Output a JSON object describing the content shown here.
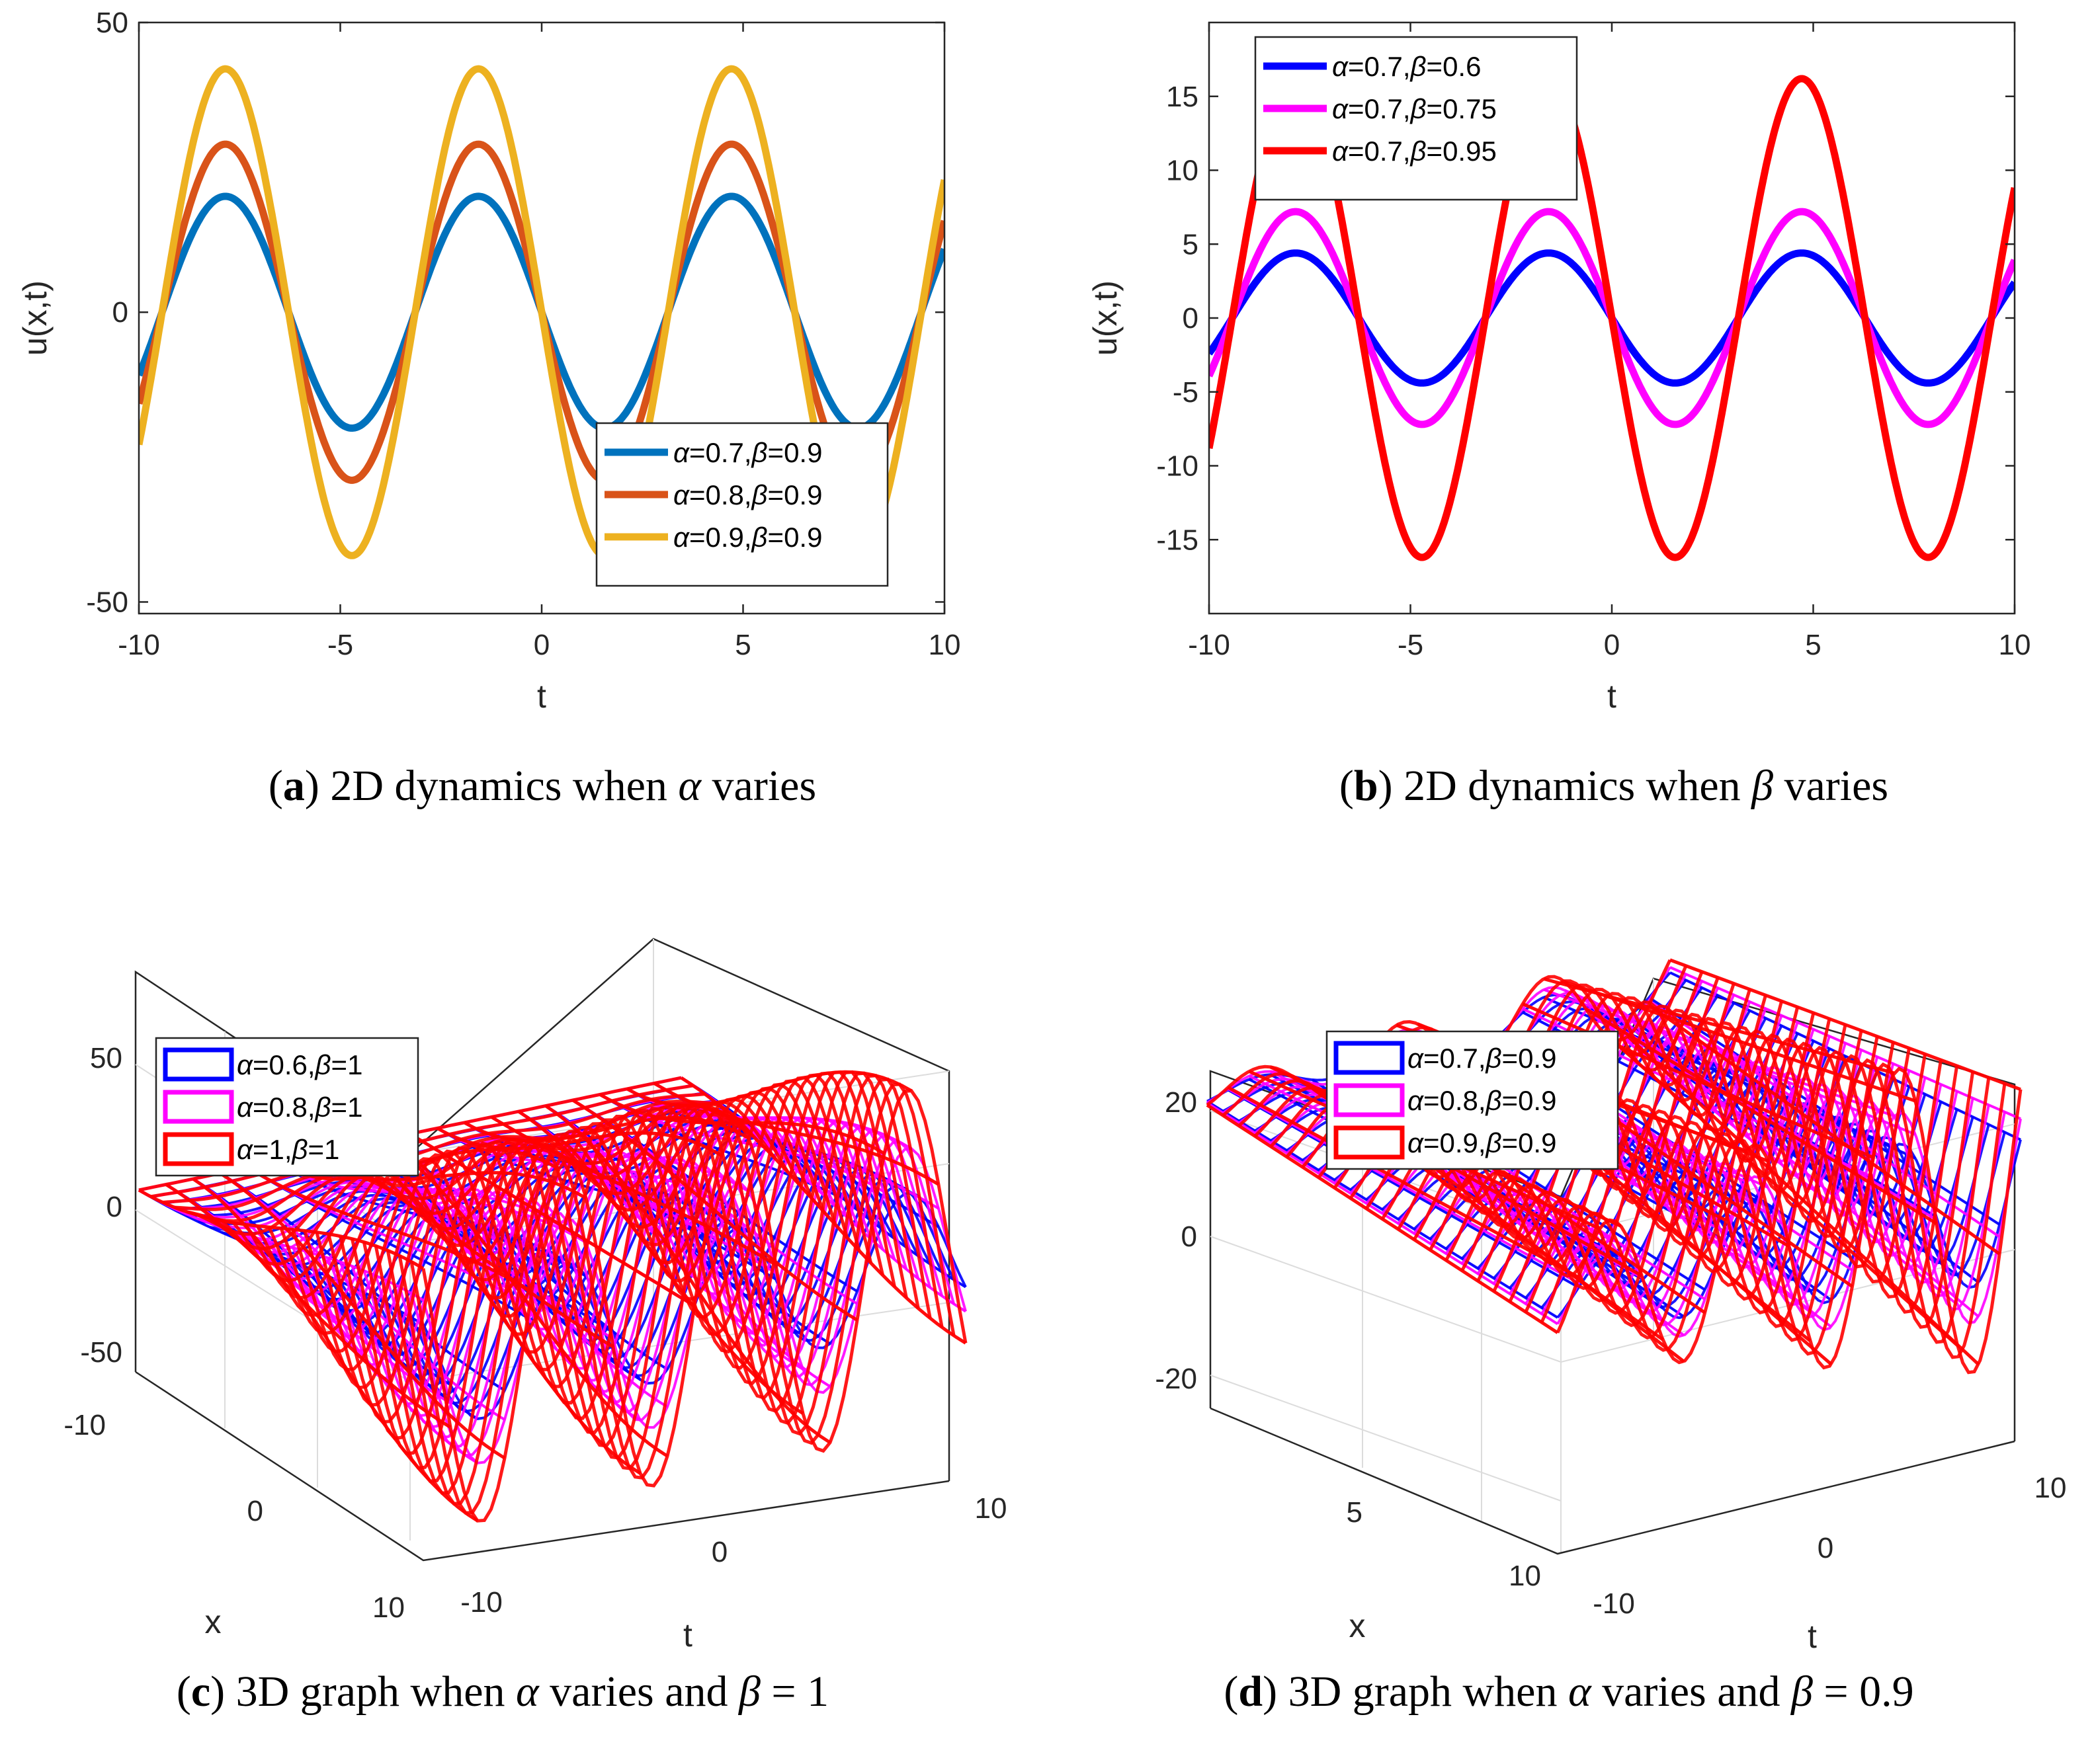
{
  "chart_data": [
    {
      "id": "a",
      "type": "line",
      "caption_letter": "a",
      "caption_parts": [
        "2D dynamics when ",
        "α",
        " varies"
      ],
      "xlabel": "t",
      "ylabel": "u(x,t)",
      "xlim": [
        -10,
        10
      ],
      "ylim": [
        -52,
        50
      ],
      "xticks": [
        "-10",
        "-5",
        "0",
        "5",
        "10"
      ],
      "xtick_values": [
        -10,
        -5,
        0,
        5,
        10
      ],
      "yticks": [
        "-50",
        "0",
        "50"
      ],
      "ytick_values": [
        -50,
        0,
        50
      ],
      "legend_position": "bottom-right",
      "series": [
        {
          "name_parts": [
            "α",
            "=0.7,",
            "β",
            "=0.9"
          ],
          "color": "#0072BD",
          "amplitude": 20,
          "period": 6.283,
          "function": "-A*sin(t)"
        },
        {
          "name_parts": [
            "α",
            "=0.8,",
            "β",
            "=0.9"
          ],
          "color": "#D95319",
          "amplitude": 29,
          "period": 6.283,
          "function": "-A*sin(t)"
        },
        {
          "name_parts": [
            "α",
            "=0.9,",
            "β",
            "=0.9"
          ],
          "color": "#EDB120",
          "amplitude": 42,
          "period": 6.283,
          "function": "-A*sin(t)"
        }
      ]
    },
    {
      "id": "b",
      "type": "line",
      "caption_letter": "b",
      "caption_parts": [
        "2D dynamics when ",
        "β",
        " varies"
      ],
      "xlabel": "t",
      "ylabel": "u(x,t)",
      "xlim": [
        -10,
        10
      ],
      "ylim": [
        -20,
        20
      ],
      "xticks": [
        "-10",
        "-5",
        "0",
        "5",
        "10"
      ],
      "xtick_values": [
        -10,
        -5,
        0,
        5,
        10
      ],
      "yticks": [
        "-15",
        "-10",
        "-5",
        "0",
        "5",
        "10",
        "15"
      ],
      "ytick_values": [
        -15,
        -10,
        -5,
        0,
        5,
        10,
        15
      ],
      "legend_position": "top-left",
      "series": [
        {
          "name_parts": [
            "α",
            "=0.7,",
            "β",
            "=0.6"
          ],
          "color": "#0000FF",
          "amplitude": 4.4,
          "period": 6.283,
          "function": "-A*sin(t)"
        },
        {
          "name_parts": [
            "α",
            "=0.7,",
            "β",
            "=0.75"
          ],
          "color": "#FF00FF",
          "amplitude": 7.2,
          "period": 6.283,
          "function": "-A*sin(t)"
        },
        {
          "name_parts": [
            "α",
            "=0.7,",
            "β",
            "=0.95"
          ],
          "color": "#FF0000",
          "amplitude": 16.2,
          "period": 6.283,
          "function": "-A*sin(t)"
        }
      ]
    },
    {
      "id": "c",
      "type": "surface3d",
      "caption_letter": "c",
      "caption_parts": [
        "3D graph when ",
        "α",
        " varies and ",
        "β",
        " = 1"
      ],
      "xlabel": "t",
      "ylabel": "x",
      "zticks": [
        "50",
        "0",
        "-50"
      ],
      "ztick_values": [
        50,
        0,
        -50
      ],
      "xticks": [
        "-10",
        "0",
        "10"
      ],
      "yticks": [
        "-10",
        "0",
        "10"
      ],
      "legend_position": "top-left",
      "series": [
        {
          "name_parts": [
            "α",
            "=0.6,",
            "β",
            "=1"
          ],
          "color": "#0000FF",
          "amplitude": 20
        },
        {
          "name_parts": [
            "α",
            "=0.8,",
            "β",
            "=1"
          ],
          "color": "#FF00FF",
          "amplitude": 33
        },
        {
          "name_parts": [
            "α",
            "=1,",
            "β",
            "=1"
          ],
          "color": "#FF0000",
          "amplitude": 50
        }
      ]
    },
    {
      "id": "d",
      "type": "surface3d",
      "caption_letter": "d",
      "caption_parts": [
        "3D graph when ",
        "α",
        " varies and ",
        "β",
        " = 0.9"
      ],
      "xlabel": "t",
      "ylabel": "x",
      "zticks": [
        "20",
        "0",
        "-20"
      ],
      "ztick_values": [
        20,
        0,
        -20
      ],
      "xticks": [
        "-10",
        "0",
        "10"
      ],
      "yticks": [
        "5",
        "10"
      ],
      "legend_position": "top-left",
      "series": [
        {
          "name_parts": [
            "α",
            "=0.7,",
            "β",
            "=0.9"
          ],
          "color": "#0000FF",
          "amplitude": 12
        },
        {
          "name_parts": [
            "α",
            "=0.8,",
            "β",
            "=0.9"
          ],
          "color": "#FF00FF",
          "amplitude": 17
        },
        {
          "name_parts": [
            "α",
            "=0.9,",
            "β",
            "=0.9"
          ],
          "color": "#FF0000",
          "amplitude": 24
        }
      ]
    }
  ]
}
